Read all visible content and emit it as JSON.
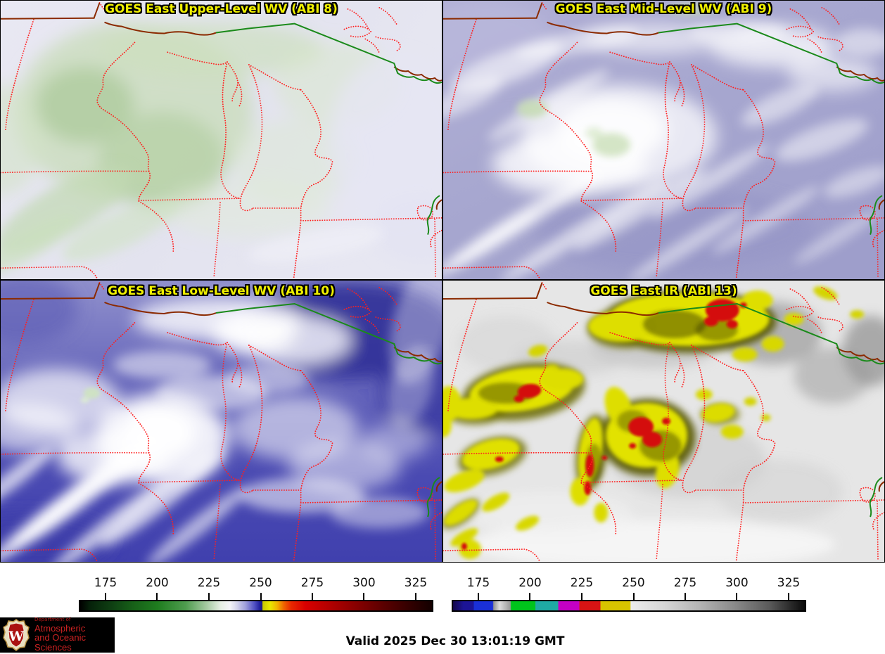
{
  "panels": [
    {
      "title": "GOES East Upper-Level WV (ABI 8)"
    },
    {
      "title": "GOES East Mid-Level WV (ABI 9)"
    },
    {
      "title": "GOES East Low-Level WV (ABI 10)"
    },
    {
      "title": "GOES East IR (ABI 13)"
    }
  ],
  "colorbars": {
    "wv": {
      "tick_labels": [
        "175",
        "200",
        "225",
        "250",
        "275",
        "300",
        "325"
      ],
      "stops": [
        {
          "at": 0.0,
          "c": "#000000"
        },
        {
          "at": 0.03,
          "c": "#06230a"
        },
        {
          "at": 0.085,
          "c": "#0e3d12"
        },
        {
          "at": 0.15,
          "c": "#176018"
        },
        {
          "at": 0.22,
          "c": "#1f7d1f"
        },
        {
          "at": 0.3,
          "c": "#4f9c4f"
        },
        {
          "at": 0.36,
          "c": "#a6cba2"
        },
        {
          "at": 0.4,
          "c": "#e6efe4"
        },
        {
          "at": 0.425,
          "c": "#f4f4f8"
        },
        {
          "at": 0.445,
          "c": "#d4d4ec"
        },
        {
          "at": 0.47,
          "c": "#9f9fdc"
        },
        {
          "at": 0.495,
          "c": "#5252c4"
        },
        {
          "at": 0.51,
          "c": "#2222a0"
        },
        {
          "at": 0.517,
          "c": "#171780"
        },
        {
          "at": 0.519,
          "c": "#c8c800"
        },
        {
          "at": 0.54,
          "c": "#e8e800"
        },
        {
          "at": 0.56,
          "c": "#f0b400"
        },
        {
          "at": 0.58,
          "c": "#f06000"
        },
        {
          "at": 0.6,
          "c": "#e82800"
        },
        {
          "at": 0.64,
          "c": "#d80000"
        },
        {
          "at": 0.7,
          "c": "#b80000"
        },
        {
          "at": 0.78,
          "c": "#8a0000"
        },
        {
          "at": 0.86,
          "c": "#5c0000"
        },
        {
          "at": 0.93,
          "c": "#360000"
        },
        {
          "at": 1.0,
          "c": "#140000"
        }
      ]
    },
    "ir": {
      "tick_labels": [
        "175",
        "200",
        "225",
        "250",
        "275",
        "300",
        "325"
      ],
      "stops": [
        {
          "at": 0.0,
          "c": "#14084a"
        },
        {
          "at": 0.03,
          "c": "#1c1496"
        },
        {
          "at": 0.058,
          "c": "#1c1496"
        },
        {
          "at": 0.06,
          "c": "#1a30d8"
        },
        {
          "at": 0.113,
          "c": "#1a30d8"
        },
        {
          "at": 0.115,
          "c": "#909090"
        },
        {
          "at": 0.132,
          "c": "#dcdcdc"
        },
        {
          "at": 0.163,
          "c": "#9a9a9a"
        },
        {
          "at": 0.165,
          "c": "#00c41c"
        },
        {
          "at": 0.233,
          "c": "#00c41c"
        },
        {
          "at": 0.235,
          "c": "#1faaa4"
        },
        {
          "at": 0.298,
          "c": "#1faaa4"
        },
        {
          "at": 0.3,
          "c": "#c400c4"
        },
        {
          "at": 0.358,
          "c": "#c400c4"
        },
        {
          "at": 0.36,
          "c": "#d81414"
        },
        {
          "at": 0.418,
          "c": "#d81414"
        },
        {
          "at": 0.42,
          "c": "#d8c400"
        },
        {
          "at": 0.503,
          "c": "#d8c400"
        },
        {
          "at": 0.506,
          "c": "#ececec"
        },
        {
          "at": 0.6,
          "c": "#d6d6d6"
        },
        {
          "at": 0.7,
          "c": "#b4b4b4"
        },
        {
          "at": 0.8,
          "c": "#8a8a8a"
        },
        {
          "at": 0.9,
          "c": "#5a5a5a"
        },
        {
          "at": 1.0,
          "c": "#0a0a0a"
        }
      ]
    }
  },
  "footer": {
    "valid_text": "Valid 2025 Dec 30 13:01:19 GMT"
  },
  "logo": {
    "dept_line": "Department of",
    "line1": "Atmospheric",
    "line2": "and Oceanic Sciences",
    "monogram": "W"
  },
  "colors": {
    "panel_title": "#f0f000",
    "state_border_dots": "#ff1f1f",
    "international_border": "#1a8a1a",
    "shoreline": "#8b2a00",
    "logo_text": "#cc2222",
    "logo_bg": "#000000"
  }
}
